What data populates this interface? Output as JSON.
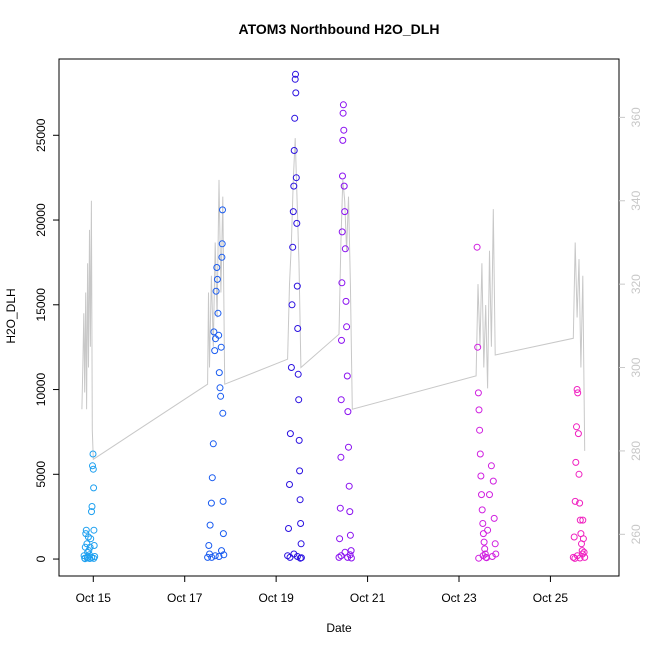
{
  "chart_data": {
    "type": "scatter",
    "title": "ATOM3 Northbound H2O_DLH",
    "xlabel": "Date",
    "ylabel": "H2O_DLH",
    "y2label": "",
    "xlim": [
      "2016-10-14T06:00",
      "2016-10-26T12:00"
    ],
    "ylim": [
      -1000,
      29500
    ],
    "y2lim": [
      250,
      374
    ],
    "x_ticks": [
      {
        "label": "Oct 15",
        "date": "2016-10-15"
      },
      {
        "label": "Oct 17",
        "date": "2016-10-17"
      },
      {
        "label": "Oct 19",
        "date": "2016-10-19"
      },
      {
        "label": "Oct 21",
        "date": "2016-10-21"
      },
      {
        "label": "Oct 23",
        "date": "2016-10-23"
      },
      {
        "label": "Oct 25",
        "date": "2016-10-25"
      }
    ],
    "y_ticks": [
      "0",
      "5000",
      "10000",
      "15000",
      "20000",
      "25000"
    ],
    "y2_ticks": [
      "260",
      "280",
      "300",
      "320",
      "340",
      "360"
    ],
    "grid": false,
    "legend": "none",
    "colors": {
      "line": "#c8c8c8",
      "axis": "#000000",
      "right_axis": "#c8c8c8",
      "flight_colors": [
        "#1ea0f0",
        "#1a5cf0",
        "#2a10e0",
        "#8a10f0",
        "#d020e0",
        "#f020c0"
      ]
    },
    "flights": [
      {
        "color": "#1ea0f0",
        "points": [
          [
            "2016-10-14T19:12",
            200
          ],
          [
            "2016-10-14T19:30",
            50
          ],
          [
            "2016-10-14T19:50",
            700
          ],
          [
            "2016-10-14T20:05",
            1500
          ],
          [
            "2016-10-14T20:20",
            1700
          ],
          [
            "2016-10-14T20:40",
            900
          ],
          [
            "2016-10-14T21:00",
            400
          ],
          [
            "2016-10-14T21:10",
            100
          ],
          [
            "2016-10-14T21:25",
            1300
          ],
          [
            "2016-10-14T21:40",
            500
          ],
          [
            "2016-10-14T22:00",
            250
          ],
          [
            "2016-10-14T22:20",
            700
          ],
          [
            "2016-10-14T22:40",
            1200
          ],
          [
            "2016-10-14T23:05",
            2800
          ],
          [
            "2016-10-14T23:20",
            3100
          ],
          [
            "2016-10-14T23:35",
            5500
          ],
          [
            "2016-10-14T23:50",
            6200
          ],
          [
            "2016-10-15T00:00",
            5300
          ],
          [
            "2016-10-15T00:10",
            4200
          ],
          [
            "2016-10-15T00:20",
            1700
          ],
          [
            "2016-10-15T00:30",
            800
          ],
          [
            "2016-10-15T00:45",
            150
          ],
          [
            "2016-10-14T19:40",
            20
          ],
          [
            "2016-10-14T20:50",
            60
          ],
          [
            "2016-10-14T22:10",
            30
          ],
          [
            "2016-10-14T23:10",
            90
          ],
          [
            "2016-10-15T00:15",
            40
          ]
        ]
      },
      {
        "color": "#1a5cf0",
        "points": [
          [
            "2016-10-17T12:00",
            100
          ],
          [
            "2016-10-17T12:40",
            800
          ],
          [
            "2016-10-17T13:20",
            2000
          ],
          [
            "2016-10-17T14:00",
            3300
          ],
          [
            "2016-10-17T14:30",
            4800
          ],
          [
            "2016-10-17T15:00",
            6800
          ],
          [
            "2016-10-17T15:20",
            13400
          ],
          [
            "2016-10-17T15:45",
            12300
          ],
          [
            "2016-10-17T16:10",
            13000
          ],
          [
            "2016-10-17T16:30",
            15800
          ],
          [
            "2016-10-17T16:50",
            17200
          ],
          [
            "2016-10-17T17:10",
            16500
          ],
          [
            "2016-10-17T17:30",
            14500
          ],
          [
            "2016-10-17T17:50",
            13200
          ],
          [
            "2016-10-17T18:10",
            11000
          ],
          [
            "2016-10-17T18:30",
            10100
          ],
          [
            "2016-10-17T18:50",
            9600
          ],
          [
            "2016-10-17T19:10",
            12500
          ],
          [
            "2016-10-17T19:30",
            17800
          ],
          [
            "2016-10-17T19:40",
            18600
          ],
          [
            "2016-10-17T19:50",
            20600
          ],
          [
            "2016-10-17T20:00",
            8600
          ],
          [
            "2016-10-17T20:10",
            3400
          ],
          [
            "2016-10-17T20:20",
            1500
          ],
          [
            "2016-10-17T13:00",
            300
          ],
          [
            "2016-10-17T14:10",
            100
          ],
          [
            "2016-10-17T16:00",
            200
          ],
          [
            "2016-10-17T18:00",
            150
          ],
          [
            "2016-10-17T19:20",
            500
          ],
          [
            "2016-10-17T20:30",
            250
          ]
        ]
      },
      {
        "color": "#2a10e0",
        "points": [
          [
            "2016-10-19T06:00",
            200
          ],
          [
            "2016-10-19T06:30",
            1800
          ],
          [
            "2016-10-19T07:00",
            4400
          ],
          [
            "2016-10-19T07:30",
            7400
          ],
          [
            "2016-10-19T08:00",
            11300
          ],
          [
            "2016-10-19T08:20",
            15000
          ],
          [
            "2016-10-19T08:40",
            18400
          ],
          [
            "2016-10-19T09:00",
            20500
          ],
          [
            "2016-10-19T09:15",
            22000
          ],
          [
            "2016-10-19T09:30",
            24100
          ],
          [
            "2016-10-19T09:45",
            26000
          ],
          [
            "2016-10-19T10:00",
            28300
          ],
          [
            "2016-10-19T10:10",
            28600
          ],
          [
            "2016-10-19T10:20",
            27500
          ],
          [
            "2016-10-19T10:35",
            22500
          ],
          [
            "2016-10-19T10:50",
            19800
          ],
          [
            "2016-10-19T11:05",
            16100
          ],
          [
            "2016-10-19T11:20",
            13600
          ],
          [
            "2016-10-19T11:35",
            10900
          ],
          [
            "2016-10-19T11:50",
            9400
          ],
          [
            "2016-10-19T12:05",
            7000
          ],
          [
            "2016-10-19T12:20",
            5200
          ],
          [
            "2016-10-19T12:35",
            3500
          ],
          [
            "2016-10-19T12:50",
            2100
          ],
          [
            "2016-10-19T13:05",
            900
          ],
          [
            "2016-10-19T07:15",
            100
          ],
          [
            "2016-10-19T09:20",
            300
          ],
          [
            "2016-10-19T11:10",
            150
          ],
          [
            "2016-10-19T12:40",
            50
          ],
          [
            "2016-10-19T13:15",
            80
          ]
        ]
      },
      {
        "color": "#8a10f0",
        "points": [
          [
            "2016-10-20T09:00",
            100
          ],
          [
            "2016-10-20T09:20",
            1200
          ],
          [
            "2016-10-20T09:40",
            3000
          ],
          [
            "2016-10-20T10:00",
            6000
          ],
          [
            "2016-10-20T10:10",
            9400
          ],
          [
            "2016-10-20T10:20",
            12900
          ],
          [
            "2016-10-20T10:30",
            16300
          ],
          [
            "2016-10-20T10:40",
            19300
          ],
          [
            "2016-10-20T10:50",
            22600
          ],
          [
            "2016-10-20T11:00",
            24700
          ],
          [
            "2016-10-20T11:10",
            26300
          ],
          [
            "2016-10-20T11:20",
            26800
          ],
          [
            "2016-10-20T11:30",
            25300
          ],
          [
            "2016-10-20T11:45",
            22000
          ],
          [
            "2016-10-20T12:00",
            20500
          ],
          [
            "2016-10-20T12:20",
            18300
          ],
          [
            "2016-10-20T12:40",
            15200
          ],
          [
            "2016-10-20T13:00",
            13700
          ],
          [
            "2016-10-20T13:20",
            10800
          ],
          [
            "2016-10-20T13:40",
            8700
          ],
          [
            "2016-10-20T14:00",
            6600
          ],
          [
            "2016-10-20T14:20",
            4300
          ],
          [
            "2016-10-20T14:40",
            2800
          ],
          [
            "2016-10-20T15:00",
            1400
          ],
          [
            "2016-10-20T15:20",
            500
          ],
          [
            "2016-10-20T10:05",
            200
          ],
          [
            "2016-10-20T12:10",
            400
          ],
          [
            "2016-10-20T13:30",
            100
          ],
          [
            "2016-10-20T14:50",
            250
          ],
          [
            "2016-10-20T15:30",
            60
          ]
        ]
      },
      {
        "color": "#d020e0",
        "points": [
          [
            "2016-10-23T09:30",
            18400
          ],
          [
            "2016-10-23T09:50",
            12500
          ],
          [
            "2016-10-23T10:10",
            9800
          ],
          [
            "2016-10-23T10:30",
            8800
          ],
          [
            "2016-10-23T10:50",
            7600
          ],
          [
            "2016-10-23T11:10",
            6200
          ],
          [
            "2016-10-23T11:30",
            4900
          ],
          [
            "2016-10-23T11:50",
            3800
          ],
          [
            "2016-10-23T12:10",
            2900
          ],
          [
            "2016-10-23T12:30",
            2100
          ],
          [
            "2016-10-23T12:50",
            1500
          ],
          [
            "2016-10-23T13:10",
            1000
          ],
          [
            "2016-10-23T13:30",
            600
          ],
          [
            "2016-10-23T13:50",
            300
          ],
          [
            "2016-10-23T14:10",
            100
          ],
          [
            "2016-10-23T15:00",
            1700
          ],
          [
            "2016-10-23T16:00",
            3800
          ],
          [
            "2016-10-23T17:00",
            5500
          ],
          [
            "2016-10-23T18:00",
            4600
          ],
          [
            "2016-10-23T18:30",
            2400
          ],
          [
            "2016-10-23T19:00",
            900
          ],
          [
            "2016-10-23T19:20",
            300
          ],
          [
            "2016-10-23T10:20",
            50
          ],
          [
            "2016-10-23T12:40",
            200
          ],
          [
            "2016-10-23T14:30",
            80
          ],
          [
            "2016-10-23T17:30",
            150
          ]
        ]
      },
      {
        "color": "#f020c0",
        "points": [
          [
            "2016-10-25T12:00",
            100
          ],
          [
            "2016-10-25T12:30",
            1300
          ],
          [
            "2016-10-25T13:00",
            3400
          ],
          [
            "2016-10-25T13:20",
            5700
          ],
          [
            "2016-10-25T13:40",
            7800
          ],
          [
            "2016-10-25T14:00",
            10000
          ],
          [
            "2016-10-25T14:20",
            9800
          ],
          [
            "2016-10-25T14:40",
            7400
          ],
          [
            "2016-10-25T15:00",
            5000
          ],
          [
            "2016-10-25T15:20",
            3300
          ],
          [
            "2016-10-25T15:40",
            2300
          ],
          [
            "2016-10-25T16:00",
            1500
          ],
          [
            "2016-10-25T16:20",
            900
          ],
          [
            "2016-10-25T16:40",
            500
          ],
          [
            "2016-10-25T17:00",
            2300
          ],
          [
            "2016-10-25T17:20",
            1200
          ],
          [
            "2016-10-25T17:40",
            400
          ],
          [
            "2016-10-25T18:00",
            100
          ],
          [
            "2016-10-25T12:50",
            40
          ],
          [
            "2016-10-25T14:10",
            200
          ],
          [
            "2016-10-25T15:30",
            60
          ],
          [
            "2016-10-25T16:50",
            300
          ]
        ]
      }
    ],
    "right_axis_trace": [
      [
        "2016-10-14T18:00",
        290
      ],
      [
        "2016-10-14T18:30",
        300
      ],
      [
        "2016-10-14T19:00",
        313
      ],
      [
        "2016-10-14T19:30",
        294
      ],
      [
        "2016-10-14T20:00",
        318
      ],
      [
        "2016-10-14T20:30",
        290
      ],
      [
        "2016-10-14T21:00",
        325
      ],
      [
        "2016-10-14T21:30",
        300
      ],
      [
        "2016-10-14T22:00",
        333
      ],
      [
        "2016-10-14T22:30",
        305
      ],
      [
        "2016-10-14T23:00",
        340
      ],
      [
        "2016-10-14T23:30",
        285
      ],
      [
        "2016-10-15T00:00",
        278
      ],
      [
        "2016-10-17T12:00",
        296
      ],
      [
        "2016-10-17T12:30",
        318
      ],
      [
        "2016-10-17T13:00",
        300
      ],
      [
        "2016-10-17T14:00",
        322
      ],
      [
        "2016-10-17T15:00",
        305
      ],
      [
        "2016-10-17T16:00",
        330
      ],
      [
        "2016-10-17T17:00",
        312
      ],
      [
        "2016-10-17T18:00",
        345
      ],
      [
        "2016-10-17T19:00",
        318
      ],
      [
        "2016-10-17T20:00",
        341
      ],
      [
        "2016-10-17T21:00",
        296
      ],
      [
        "2016-10-19T06:00",
        302
      ],
      [
        "2016-10-19T07:00",
        320
      ],
      [
        "2016-10-19T08:00",
        330
      ],
      [
        "2016-10-19T09:00",
        345
      ],
      [
        "2016-10-19T10:00",
        355
      ],
      [
        "2016-10-19T11:00",
        340
      ],
      [
        "2016-10-19T12:00",
        325
      ],
      [
        "2016-10-19T13:00",
        300
      ],
      [
        "2016-10-20T09:00",
        308
      ],
      [
        "2016-10-20T10:00",
        330
      ],
      [
        "2016-10-20T11:00",
        345
      ],
      [
        "2016-10-20T12:00",
        340
      ],
      [
        "2016-10-20T13:00",
        328
      ],
      [
        "2016-10-20T14:00",
        341
      ],
      [
        "2016-10-20T15:00",
        320
      ],
      [
        "2016-10-20T16:00",
        290
      ],
      [
        "2016-10-23T09:00",
        298
      ],
      [
        "2016-10-23T10:00",
        320
      ],
      [
        "2016-10-23T11:00",
        305
      ],
      [
        "2016-10-23T12:00",
        325
      ],
      [
        "2016-10-23T13:00",
        300
      ],
      [
        "2016-10-23T14:00",
        315
      ],
      [
        "2016-10-23T15:00",
        295
      ],
      [
        "2016-10-23T16:00",
        328
      ],
      [
        "2016-10-23T17:00",
        305
      ],
      [
        "2016-10-23T18:00",
        338
      ],
      [
        "2016-10-23T19:00",
        303
      ],
      [
        "2016-10-25T12:00",
        307
      ],
      [
        "2016-10-25T13:00",
        330
      ],
      [
        "2016-10-25T14:00",
        312
      ],
      [
        "2016-10-25T15:00",
        326
      ],
      [
        "2016-10-25T16:00",
        300
      ],
      [
        "2016-10-25T17:00",
        322
      ],
      [
        "2016-10-25T18:00",
        280
      ]
    ]
  }
}
